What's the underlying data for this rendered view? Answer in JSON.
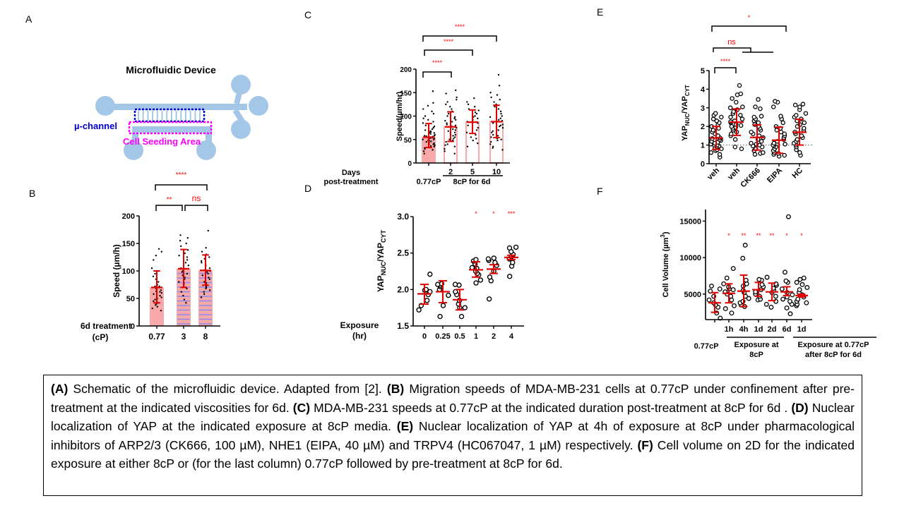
{
  "panels": {
    "A": {
      "letter": "A",
      "title": "Microfluidic Device",
      "channel_label": "µ-channel",
      "seeding_label": "Cell Seeding Area",
      "colors": {
        "device": "#a4c6e7",
        "channel": "#0000cc",
        "seeding": "#ff00ff"
      }
    },
    "B": {
      "letter": "B"
    },
    "C": {
      "letter": "C"
    },
    "D": {
      "letter": "D"
    },
    "E": {
      "letter": "E"
    },
    "F": {
      "letter": "F"
    }
  },
  "chart_data": [
    {
      "id": "B",
      "type": "bar",
      "title": "",
      "ylabel": "Speed  (µm/h)",
      "xlabel": "6d treatment (cP)",
      "xlabel_lines": [
        "6d treatment",
        "(cP)"
      ],
      "categories": [
        "0.77",
        "3",
        "8"
      ],
      "values": [
        70,
        104,
        101
      ],
      "error_low": [
        42,
        70,
        74
      ],
      "error_high": [
        100,
        139,
        129
      ],
      "ylim": [
        0,
        200
      ],
      "yticks": [
        0,
        50,
        100,
        150,
        200
      ],
      "bar_styles": [
        "solid",
        "striped",
        "striped"
      ],
      "points": [
        [
          28,
          32,
          35,
          38,
          40,
          42,
          45,
          48,
          50,
          52,
          55,
          58,
          60,
          62,
          63,
          65,
          68,
          70,
          72,
          72,
          75,
          80,
          85,
          90,
          95,
          100,
          105,
          120,
          128,
          135,
          140
        ],
        [
          42,
          48,
          55,
          62,
          68,
          70,
          72,
          75,
          78,
          80,
          85,
          88,
          92,
          95,
          98,
          100,
          105,
          110,
          115,
          120,
          125,
          128,
          132,
          138,
          145,
          150,
          155,
          160,
          165
        ],
        [
          52,
          58,
          62,
          65,
          68,
          70,
          72,
          75,
          78,
          80,
          85,
          88,
          92,
          95,
          98,
          100,
          102,
          105,
          108,
          110,
          112,
          115,
          118,
          122,
          125,
          130,
          135,
          142,
          173
        ]
      ],
      "significance": [
        {
          "from": 0,
          "to": 2,
          "label": "****"
        },
        {
          "from": 0,
          "to": 1,
          "label": "**"
        },
        {
          "from": 1,
          "to": 2,
          "label": "ns"
        }
      ],
      "colors": {
        "bar": "#f7a8a8",
        "stripe": "#8c8cf0",
        "error": "#e00000",
        "sig": "#ff0000"
      }
    },
    {
      "id": "C",
      "type": "bar",
      "title": "",
      "ylabel": "Speed(µm/hr)",
      "xlabel_lines": [
        "Days",
        "post-treatment"
      ],
      "categories": [
        "",
        "2",
        "5",
        "10"
      ],
      "group_labels": [
        {
          "label": "0.77cP",
          "span": [
            0,
            0
          ]
        },
        {
          "label": "8cP for 6d",
          "span": [
            1,
            3
          ]
        }
      ],
      "values": [
        55,
        77,
        87,
        88
      ],
      "error_low": [
        33,
        46,
        63,
        54
      ],
      "error_high": [
        84,
        109,
        113,
        123
      ],
      "ylim": [
        0,
        200
      ],
      "yticks": [
        0,
        50,
        100,
        150,
        200
      ],
      "bar_styles": [
        "filled",
        "outline",
        "outline",
        "outline"
      ],
      "points": [
        [
          20,
          25,
          28,
          30,
          32,
          33,
          35,
          36,
          38,
          40,
          40,
          42,
          44,
          45,
          46,
          48,
          48,
          50,
          50,
          52,
          53,
          54,
          55,
          55,
          56,
          57,
          58,
          58,
          60,
          62,
          64,
          65,
          66,
          68,
          70,
          72,
          75,
          78,
          80,
          85,
          88,
          92,
          95,
          100,
          105,
          110,
          115,
          122,
          128,
          153
        ],
        [
          20,
          25,
          30,
          35,
          38,
          40,
          45,
          48,
          50,
          52,
          55,
          58,
          60,
          62,
          65,
          68,
          70,
          72,
          75,
          78,
          80,
          82,
          85,
          88,
          90,
          92,
          95,
          98,
          100,
          105,
          110,
          115,
          120,
          125,
          130,
          135,
          140,
          148,
          155
        ],
        [
          35,
          42,
          48,
          52,
          55,
          60,
          65,
          70,
          75,
          80,
          85,
          88,
          92,
          95,
          98,
          100,
          105,
          108,
          112,
          115,
          120,
          125,
          130,
          138
        ],
        [
          28,
          32,
          35,
          40,
          45,
          48,
          50,
          52,
          55,
          58,
          60,
          62,
          65,
          68,
          70,
          72,
          75,
          78,
          80,
          82,
          85,
          88,
          90,
          92,
          95,
          98,
          100,
          105,
          110,
          115,
          120,
          125,
          130,
          135,
          140,
          145,
          150,
          165,
          188
        ]
      ],
      "significance": [
        {
          "from": 0,
          "to": 3,
          "label": "****"
        },
        {
          "from": 0,
          "to": 2,
          "label": "****"
        },
        {
          "from": 0,
          "to": 1,
          "label": "****"
        }
      ],
      "colors": {
        "bar": "#f7a8a8",
        "error": "#e00000",
        "sig": "#ff0000"
      }
    },
    {
      "id": "D",
      "type": "scatter",
      "title": "",
      "ylabel": "YAPNUC/YAPCYT",
      "ylabel_parts": {
        "main1": "YAP",
        "sub1": "NUC",
        "main2": "/YAP",
        "sub2": "CYT"
      },
      "xlabel_lines": [
        "Exposure",
        "(hr)"
      ],
      "categories": [
        "0",
        "0.25",
        "0.5",
        "1",
        "2",
        "4"
      ],
      "means": [
        1.94,
        1.97,
        1.86,
        2.27,
        2.28,
        2.44
      ],
      "error_low": [
        1.8,
        1.82,
        1.72,
        2.17,
        2.22,
        2.41
      ],
      "error_high": [
        2.07,
        2.12,
        2.0,
        2.38,
        2.34,
        2.47
      ],
      "ylim": [
        1.5,
        3.0
      ],
      "yticks": [
        1.5,
        2.0,
        2.5,
        3.0
      ],
      "points": [
        [
          1.72,
          1.78,
          1.85,
          1.93,
          1.97,
          1.99,
          2.0,
          2.21
        ],
        [
          1.63,
          1.78,
          1.92,
          2.0,
          2.04,
          2.06,
          2.07,
          2.08
        ],
        [
          1.63,
          1.75,
          1.75,
          1.8,
          1.85,
          1.93,
          1.97,
          2.06,
          2.07
        ],
        [
          2.09,
          2.13,
          2.2,
          2.22,
          2.25,
          2.29,
          2.3,
          2.35,
          2.39,
          2.41
        ],
        [
          1.87,
          2.12,
          2.17,
          2.25,
          2.33,
          2.37,
          2.4,
          2.42,
          2.43
        ],
        [
          2.18,
          2.32,
          2.37,
          2.42,
          2.45,
          2.48,
          2.52,
          2.57,
          2.58
        ]
      ],
      "significance_labels": [
        "",
        "",
        "",
        "*",
        "*",
        "***"
      ],
      "colors": {
        "error": "#e00000",
        "sig": "#ff0000",
        "point": "#000000"
      }
    },
    {
      "id": "E",
      "type": "scatter",
      "title": "",
      "ylabel": "YAPNUC/YAPCYT",
      "ylabel_parts": {
        "main1": "YAP",
        "sub1": "NUC",
        "main2": "/YAP",
        "sub2": "CYT"
      },
      "categories": [
        "veh",
        "veh",
        "CK666",
        "EIPA",
        "HC"
      ],
      "means": [
        1.38,
        2.23,
        1.41,
        1.26,
        1.69
      ],
      "error_low": [
        0.77,
        1.52,
        0.73,
        0.56,
        1.0
      ],
      "error_high": [
        2.0,
        2.94,
        2.08,
        1.96,
        2.38
      ],
      "ylim": [
        0,
        5
      ],
      "yticks": [
        0,
        1,
        2,
        3,
        4,
        5
      ],
      "reference_line": 1,
      "points": [
        [
          0.35,
          0.5,
          0.6,
          0.7,
          0.75,
          0.8,
          0.85,
          0.9,
          0.95,
          1.0,
          1.0,
          1.05,
          1.1,
          1.15,
          1.2,
          1.25,
          1.3,
          1.35,
          1.4,
          1.5,
          1.6,
          1.7,
          1.8,
          1.9,
          2.0,
          2.1,
          2.2,
          2.3,
          2.4,
          2.5,
          2.6,
          2.7
        ],
        [
          0.8,
          0.9,
          1.3,
          1.5,
          1.6,
          1.7,
          1.8,
          1.9,
          1.95,
          2.0,
          2.05,
          2.1,
          2.2,
          2.25,
          2.3,
          2.4,
          2.5,
          2.6,
          2.7,
          2.8,
          2.9,
          3.0,
          3.05,
          3.3,
          3.5,
          3.7,
          3.75,
          4.2
        ],
        [
          0.5,
          0.55,
          0.6,
          0.7,
          0.8,
          0.9,
          0.95,
          1.0,
          1.05,
          1.1,
          1.2,
          1.3,
          1.4,
          1.5,
          1.6,
          1.7,
          1.8,
          1.9,
          2.0,
          2.1,
          2.2,
          2.3,
          2.4,
          2.5,
          2.55,
          2.95,
          3.05,
          3.45
        ],
        [
          0.4,
          0.45,
          0.5,
          0.55,
          0.6,
          0.7,
          0.8,
          0.9,
          0.95,
          1.0,
          1.05,
          1.1,
          1.2,
          1.3,
          1.4,
          1.5,
          1.6,
          1.7,
          1.8,
          1.9,
          2.0,
          2.2,
          2.4,
          2.55,
          3.05,
          3.3,
          3.35
        ],
        [
          0.45,
          0.6,
          0.75,
          0.9,
          1.0,
          1.1,
          1.2,
          1.3,
          1.4,
          1.5,
          1.6,
          1.7,
          1.8,
          1.9,
          2.0,
          2.1,
          2.2,
          2.3,
          2.4,
          2.5,
          2.6,
          2.7,
          2.9,
          3.05,
          3.15,
          3.2
        ]
      ],
      "significance": [
        {
          "from": 0,
          "to": 4,
          "label": "*"
        },
        {
          "from": 0,
          "to": "2-4",
          "label": "ns"
        },
        {
          "from": 0,
          "to": 1,
          "label": "****"
        }
      ],
      "colors": {
        "error": "#e00000",
        "sig": "#ff0000",
        "point": "#000000"
      }
    },
    {
      "id": "F",
      "type": "scatter",
      "title": "",
      "ylabel": "Cell Volume (µm³)",
      "ylabel_parts": {
        "main": "Cell Volume (µm",
        "sup": "3",
        "end": ")"
      },
      "categories": [
        "",
        "1h",
        "4h",
        "1d",
        "2d",
        "6d",
        "1d"
      ],
      "group_labels": [
        {
          "label": "0.77cP",
          "span": [
            0,
            0
          ]
        },
        {
          "label": "Exposure at 8cP",
          "lines": [
            "Exposure at",
            "8cP"
          ],
          "span": [
            1,
            5
          ]
        },
        {
          "label": "Exposure at 0.77cP after 8cP for 6d",
          "lines": [
            "Exposure at 0.77cP",
            "after 8cP for 6d"
          ],
          "span": [
            6,
            6
          ]
        }
      ],
      "means": [
        3800,
        5100,
        5400,
        5600,
        5300,
        5300,
        4800
      ],
      "error_low": [
        2500,
        3800,
        3300,
        4700,
        4100,
        4800,
        4600
      ],
      "error_high": [
        5200,
        6400,
        7600,
        6600,
        6500,
        6000,
        5000
      ],
      "ylim": [
        1500,
        16000
      ],
      "yticks": [
        5000,
        10000,
        15000
      ],
      "points": [
        [
          1700,
          2400,
          3200,
          3500,
          3800,
          4200,
          4700,
          5400,
          5700,
          6100
        ],
        [
          2400,
          3000,
          3400,
          4200,
          4700,
          5000,
          5300,
          5600,
          5700,
          6000,
          6400,
          7200,
          8500
        ],
        [
          3300,
          3500,
          3800,
          4000,
          4400,
          4700,
          5200,
          5500,
          6100,
          6400,
          6900,
          9900,
          11700
        ],
        [
          4200,
          4300,
          4700,
          5000,
          5300,
          5600,
          6000,
          6300,
          6900,
          7000
        ],
        [
          3200,
          3600,
          4000,
          4700,
          5200,
          5500,
          5800,
          6200,
          6400,
          7300
        ],
        [
          2300,
          3100,
          3600,
          4000,
          4300,
          4600,
          4900,
          5200,
          5700,
          6600,
          6800,
          8000,
          15600
        ],
        [
          3400,
          3600,
          3800,
          4000,
          4300,
          4600,
          4900,
          5200,
          5600,
          5900,
          6300,
          6600,
          7000,
          7200
        ]
      ],
      "significance_labels": [
        "",
        "*",
        "**",
        "**",
        "**",
        "*",
        "*"
      ],
      "colors": {
        "error": "#e00000",
        "sig": "#ff0000",
        "point": "#000000"
      }
    }
  ],
  "caption": {
    "segments": [
      {
        "bold": "(A)",
        "text": " Schematic of the microfluidic device. Adapted from [2]. "
      },
      {
        "bold": "(B)",
        "text": " Migration speeds of MDA-MB-231 cells at 0.77cP under confinement after pre-treatment at the indicated viscosities for 6d. "
      },
      {
        "bold": "(C)",
        "text": " MDA-MB-231 speeds at 0.77cP at the indicated duration post-treatment at 8cP for 6d . "
      },
      {
        "bold": "(D)",
        "text": " Nuclear localization of YAP at the indicated exposure at 8cP media. "
      },
      {
        "bold": "(E)",
        "text": " Nuclear localization of YAP at 4h of exposure at 8cP under pharmacological inhibitors of ARP2/3 (CK666, 100 µM), NHE1 (EIPA, 40 µM) and TRPV4 (HC067047, 1 µM) respectively. "
      },
      {
        "bold": "(F)",
        "text": " Cell volume on 2D for the indicated exposure at either 8cP or (for the last column) 0.77cP followed by pre-treatment at 8cP for 6d."
      }
    ]
  }
}
